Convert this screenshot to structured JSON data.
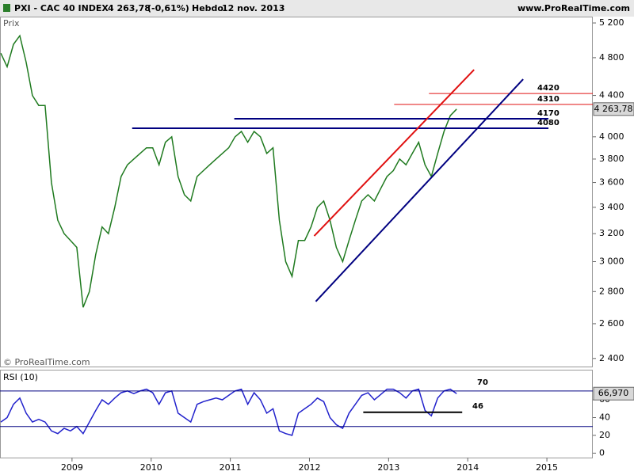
{
  "chart_data": [
    {
      "type": "line",
      "title": "PXI - CAC 40 INDEX",
      "change": "(-0,61%)",
      "period": "Hebdo",
      "date": "12 nov. 2013",
      "source": "www.ProRealTime.com",
      "copyright": "© ProRealTime.com",
      "y_label": "Prix",
      "log_scale": true,
      "color": "#1f7a1f",
      "x": [
        2008.1,
        2008.18,
        2008.26,
        2008.34,
        2008.42,
        2008.5,
        2008.58,
        2008.66,
        2008.74,
        2008.82,
        2008.9,
        2008.98,
        2009.06,
        2009.14,
        2009.22,
        2009.3,
        2009.38,
        2009.46,
        2009.54,
        2009.62,
        2009.7,
        2009.78,
        2009.86,
        2009.94,
        2010.02,
        2010.1,
        2010.18,
        2010.26,
        2010.34,
        2010.42,
        2010.5,
        2010.58,
        2010.66,
        2010.74,
        2010.82,
        2010.9,
        2010.98,
        2011.06,
        2011.14,
        2011.22,
        2011.3,
        2011.38,
        2011.46,
        2011.54,
        2011.62,
        2011.7,
        2011.78,
        2011.86,
        2011.94,
        2012.02,
        2012.1,
        2012.18,
        2012.26,
        2012.34,
        2012.42,
        2012.5,
        2012.58,
        2012.66,
        2012.74,
        2012.82,
        2012.9,
        2012.98,
        2013.06,
        2013.14,
        2013.22,
        2013.3,
        2013.38,
        2013.46,
        2013.54,
        2013.62,
        2013.7,
        2013.78,
        2013.86
      ],
      "values": [
        4850,
        4700,
        4950,
        5050,
        4750,
        4400,
        4300,
        4300,
        3600,
        3300,
        3200,
        3150,
        3100,
        2700,
        2800,
        3050,
        3250,
        3200,
        3400,
        3650,
        3750,
        3800,
        3850,
        3900,
        3900,
        3750,
        3950,
        4000,
        3650,
        3500,
        3450,
        3650,
        3700,
        3750,
        3800,
        3850,
        3900,
        4000,
        4050,
        3950,
        4050,
        4000,
        3850,
        3900,
        3300,
        3000,
        2900,
        3150,
        3150,
        3250,
        3400,
        3450,
        3300,
        3100,
        3000,
        3150,
        3300,
        3450,
        3500,
        3450,
        3550,
        3650,
        3700,
        3800,
        3750,
        3850,
        3950,
        3750,
        3650,
        3850,
        4050,
        4200,
        4263.78
      ],
      "last_value_label": "4 263,78",
      "xlim": [
        2008.09,
        2015.58
      ],
      "xticks": [
        2009,
        2010,
        2011,
        2012,
        2013,
        2014,
        2015
      ],
      "ylim": [
        2360,
        5267
      ],
      "yticks": [
        {
          "value": 5200,
          "label": "5 200"
        },
        {
          "value": 4800,
          "label": "4 800"
        },
        {
          "value": 4400,
          "label": "4 400"
        },
        {
          "value": 4000,
          "label": "4 000"
        },
        {
          "value": 3800,
          "label": "3 800"
        },
        {
          "value": 3600,
          "label": "3 600"
        },
        {
          "value": 3400,
          "label": "3 400"
        },
        {
          "value": 3200,
          "label": "3 200"
        },
        {
          "value": 3000,
          "label": "3 000"
        },
        {
          "value": 2800,
          "label": "2 800"
        },
        {
          "value": 2600,
          "label": "2 600"
        },
        {
          "value": 2400,
          "label": "2 400"
        }
      ],
      "levels": [
        {
          "value": 4420,
          "color": "#e01010",
          "x": [
            2013.51,
            2015.58
          ]
        },
        {
          "value": 4310,
          "color": "#e01010",
          "x": [
            2013.07,
            2015.58
          ]
        },
        {
          "value": 4170,
          "color": "#000080",
          "x": [
            2011.05,
            2015.02
          ]
        },
        {
          "value": 4080,
          "color": "#000080",
          "x": [
            2009.76,
            2015.02
          ]
        }
      ],
      "trendlines": [
        {
          "color": "#e01010",
          "x": [
            2012.06,
            2014.08
          ],
          "values": [
            3183,
            4669
          ]
        },
        {
          "color": "#000080",
          "x": [
            2012.08,
            2014.7
          ],
          "values": [
            2737,
            4568
          ]
        }
      ]
    },
    {
      "type": "line",
      "title": "RSI (10)",
      "color": "#2222cc",
      "x": [
        2008.1,
        2008.18,
        2008.26,
        2008.34,
        2008.42,
        2008.5,
        2008.58,
        2008.66,
        2008.74,
        2008.82,
        2008.9,
        2008.98,
        2009.06,
        2009.14,
        2009.22,
        2009.3,
        2009.38,
        2009.46,
        2009.54,
        2009.62,
        2009.7,
        2009.78,
        2009.86,
        2009.94,
        2010.02,
        2010.1,
        2010.18,
        2010.26,
        2010.34,
        2010.42,
        2010.5,
        2010.58,
        2010.66,
        2010.74,
        2010.82,
        2010.9,
        2010.98,
        2011.06,
        2011.14,
        2011.22,
        2011.3,
        2011.38,
        2011.46,
        2011.54,
        2011.62,
        2011.7,
        2011.78,
        2011.86,
        2011.94,
        2012.02,
        2012.1,
        2012.18,
        2012.26,
        2012.34,
        2012.42,
        2012.5,
        2012.58,
        2012.66,
        2012.74,
        2012.82,
        2012.9,
        2012.98,
        2013.06,
        2013.14,
        2013.22,
        2013.3,
        2013.38,
        2013.46,
        2013.54,
        2013.62,
        2013.7,
        2013.78,
        2013.86
      ],
      "values": [
        35,
        40,
        55,
        62,
        45,
        35,
        38,
        35,
        25,
        22,
        28,
        25,
        30,
        22,
        35,
        48,
        60,
        55,
        62,
        68,
        70,
        67,
        70,
        72,
        68,
        55,
        68,
        70,
        45,
        40,
        35,
        55,
        58,
        60,
        62,
        60,
        65,
        70,
        72,
        55,
        68,
        60,
        45,
        50,
        25,
        22,
        20,
        45,
        50,
        55,
        62,
        58,
        40,
        32,
        28,
        45,
        55,
        65,
        68,
        60,
        66,
        72,
        72,
        68,
        62,
        70,
        72,
        48,
        42,
        62,
        70,
        72,
        66.97
      ],
      "last_value_label": "66,970",
      "xlim": [
        2008.09,
        2015.58
      ],
      "ylim": [
        -5,
        93
      ],
      "yticks": [
        0,
        20,
        40,
        60
      ],
      "overbought": 70,
      "oversold": 30,
      "support": {
        "value": 46,
        "x": [
          2012.68,
          2013.93
        ]
      }
    }
  ]
}
